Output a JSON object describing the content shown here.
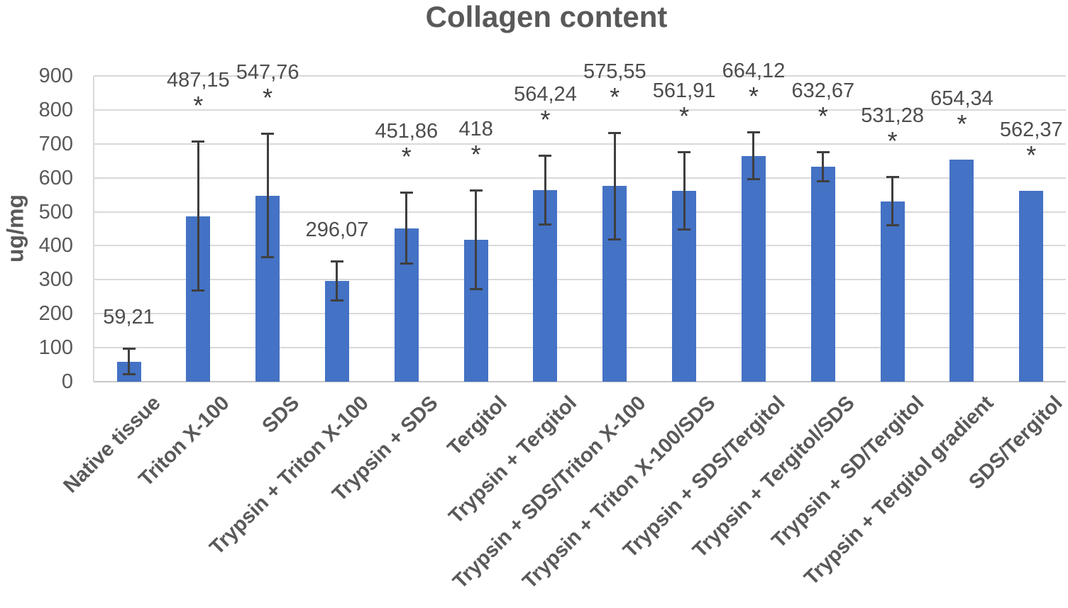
{
  "chart_data": {
    "type": "bar",
    "title": "Collagen content",
    "ylabel": "ug/mg",
    "xlabel": "",
    "ylim": [
      0,
      900
    ],
    "ytick_step": 100,
    "ytick_labels": [
      "0",
      "100",
      "200",
      "300",
      "400",
      "500",
      "600",
      "700",
      "800",
      "900"
    ],
    "grid": true,
    "legend": false,
    "decimal_separator": ",",
    "significance_marker": "*",
    "bar_color": "#4472C4",
    "error_bar_color": "#3f3f3f",
    "gridline_color": "#d9d9d9",
    "axis_line_color": "#c6c6c6",
    "text_color": "#595959",
    "bars": [
      {
        "category": "Native tissue",
        "value": 59.21,
        "label": "59,21",
        "error": 38,
        "significant": false
      },
      {
        "category": "Triton X-100",
        "value": 487.15,
        "label": "487,15",
        "error": 220,
        "significant": true
      },
      {
        "category": "SDS",
        "value": 547.76,
        "label": "547,76",
        "error": 183,
        "significant": true
      },
      {
        "category": "Trypsin + Triton X-100",
        "value": 296.07,
        "label": "296,07",
        "error": 59,
        "significant": false
      },
      {
        "category": "Trypsin + SDS",
        "value": 451.86,
        "label": "451,86",
        "error": 105,
        "significant": true
      },
      {
        "category": "Tergitol",
        "value": 418,
        "label": "418",
        "error": 146,
        "significant": true
      },
      {
        "category": "Trypsin + Tergitol",
        "value": 564.24,
        "label": "564,24",
        "error": 102,
        "significant": true
      },
      {
        "category": "Trypsin + SDS/Triton X-100",
        "value": 575.55,
        "label": "575,55",
        "error": 158,
        "significant": true
      },
      {
        "category": "Trypsin + Triton X-100/SDS",
        "value": 561.91,
        "label": "561,91",
        "error": 115,
        "significant": true
      },
      {
        "category": "Trypsin + SDS/Tergitol",
        "value": 664.12,
        "label": "664,12",
        "error": 70,
        "significant": true
      },
      {
        "category": "Trypsin + Tergitol/SDS",
        "value": 632.67,
        "label": "632,67",
        "error": 43,
        "significant": true
      },
      {
        "category": "Trypsin + SD/Tergitol",
        "value": 531.28,
        "label": "531,28",
        "error": 72,
        "significant": true
      },
      {
        "category": "Trypsin + Tergitol gradient",
        "value": 654.34,
        "label": "654,34",
        "error": null,
        "significant": true
      },
      {
        "category": "SDS/Tergitol",
        "value": 562.37,
        "label": "562,37",
        "error": null,
        "significant": true
      }
    ]
  }
}
